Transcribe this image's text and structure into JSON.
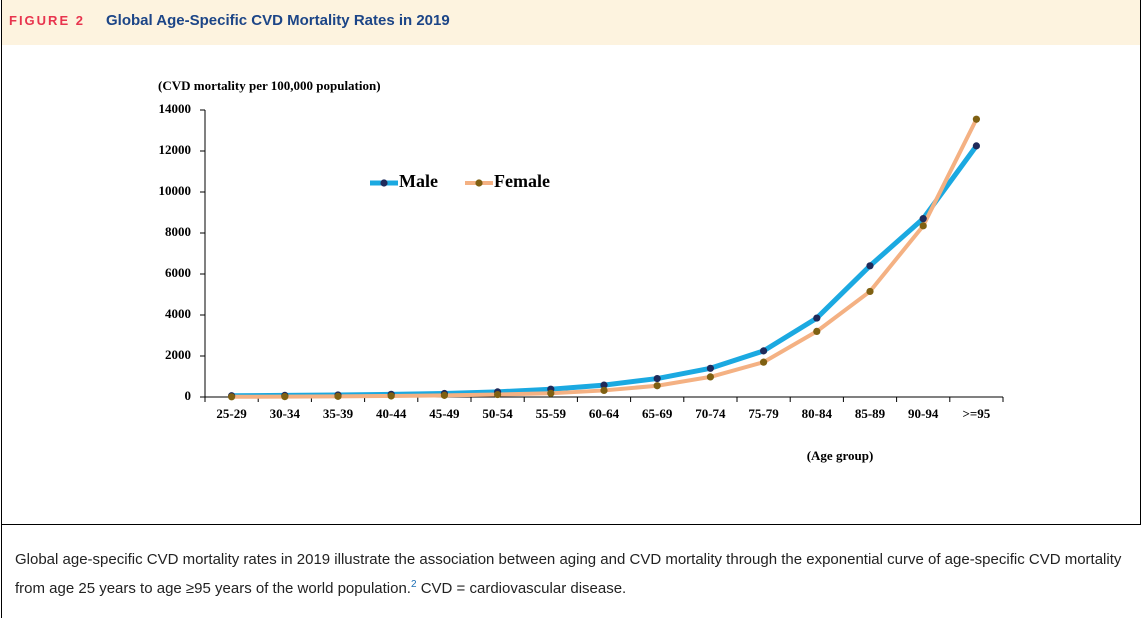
{
  "header": {
    "label": "FIGURE 2",
    "title": "Global Age-Specific CVD Mortality Rates in 2019"
  },
  "chart_data": {
    "type": "line",
    "y_label": "(CVD mortality per 100,000 population)",
    "x_label": "(Age group)",
    "categories": [
      "25-29",
      "30-34",
      "35-39",
      "40-44",
      "45-49",
      "50-54",
      "55-59",
      "60-64",
      "65-69",
      "70-74",
      "75-79",
      "80-84",
      "85-89",
      "90-94",
      ">=95"
    ],
    "series": [
      {
        "name": "Male",
        "color": "#1ba9e1",
        "marker_color": "#1f2a5a",
        "values": [
          60,
          80,
          100,
          130,
          170,
          250,
          380,
          580,
          900,
          1400,
          2250,
          3850,
          6400,
          8700,
          12250
        ]
      },
      {
        "name": "Female",
        "color": "#f4b183",
        "marker_color": "#7f6012",
        "values": [
          10,
          20,
          30,
          50,
          80,
          120,
          180,
          320,
          550,
          980,
          1700,
          3200,
          5150,
          8350,
          13550
        ]
      }
    ],
    "ylim": [
      0,
      14000
    ],
    "yticks": [
      0,
      2000,
      4000,
      6000,
      8000,
      10000,
      12000,
      14000
    ],
    "grid": false,
    "legend": "upper-left"
  },
  "caption": {
    "text_before": "Global age-specific CVD mortality rates in 2019 illustrate the association between aging and CVD mortality through the exponential curve of age-specific CVD mortality from age 25 years to age ≥95 years of the world population.",
    "ref": "2",
    "text_after": " CVD = cardiovascular disease."
  }
}
